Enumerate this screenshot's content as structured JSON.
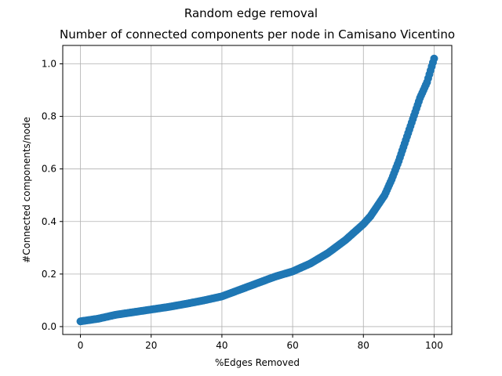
{
  "chart_data": {
    "type": "scatter",
    "suptitle": "Random edge removal",
    "title": "Number of connected components per node in Camisano Vicentino",
    "xlabel": "%Edges Removed",
    "ylabel": "#Connected components/node",
    "xlim": [
      -5,
      105
    ],
    "ylim": [
      -0.03,
      1.07
    ],
    "xticks": [
      0,
      20,
      40,
      60,
      80,
      100
    ],
    "yticks": [
      0.0,
      0.2,
      0.4,
      0.6,
      0.8,
      1.0
    ],
    "xtick_labels": [
      "0",
      "20",
      "40",
      "60",
      "80",
      "100"
    ],
    "ytick_labels": [
      "0.0",
      "0.2",
      "0.4",
      "0.6",
      "0.8",
      "1.0"
    ],
    "grid": true,
    "marker_color": "#1f77b4",
    "series": [
      {
        "x": [
          0,
          5,
          10,
          15,
          20,
          25,
          30,
          35,
          40,
          45,
          50,
          55,
          60,
          65,
          70,
          75,
          80,
          82,
          84,
          86,
          88,
          90,
          92,
          94,
          96,
          98,
          100
        ],
        "y": [
          0.02,
          0.03,
          0.045,
          0.055,
          0.065,
          0.075,
          0.087,
          0.1,
          0.115,
          0.14,
          0.165,
          0.19,
          0.21,
          0.24,
          0.28,
          0.33,
          0.39,
          0.42,
          0.46,
          0.5,
          0.56,
          0.63,
          0.71,
          0.79,
          0.87,
          0.93,
          1.02
        ]
      }
    ]
  }
}
